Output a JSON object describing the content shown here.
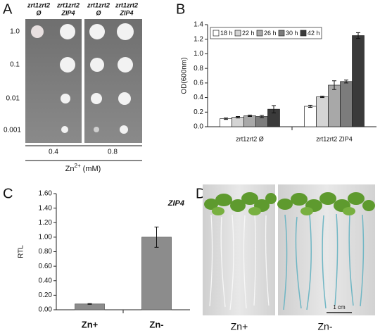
{
  "panels": {
    "A": {
      "label": "A",
      "strains": [
        {
          "name": "zrt1zrt2",
          "genotype": "Ø"
        },
        {
          "name": "zrt1zrt2",
          "genotype": "ZIP4"
        },
        {
          "name": "zrt1zrt2",
          "genotype": "Ø"
        },
        {
          "name": "zrt1zrt2",
          "genotype": "ZIP4"
        }
      ],
      "dilutions": [
        "1.0",
        "0.1",
        "0.01",
        "0.001"
      ],
      "zinc_levels": [
        "0.4",
        "0.8"
      ],
      "axis_label": {
        "base": "Zn",
        "sup": "2+",
        "rest": " (mM)"
      }
    },
    "B": {
      "label": "B"
    },
    "C": {
      "label": "C"
    },
    "D": {
      "label": "D",
      "scale_bar": "1 cm",
      "conditions": [
        "Zn+",
        "Zn-"
      ]
    }
  },
  "chart_data": [
    {
      "type": "bar",
      "ylabel": "OD(600nm)",
      "categories": [
        "zrt1zrt2 Ø",
        "zrt1zrt2 ZIP4"
      ],
      "series": [
        {
          "name": "18 h",
          "color": "#ffffff",
          "values": [
            0.11,
            0.28
          ],
          "errors": [
            0.01,
            0.015
          ]
        },
        {
          "name": "22 h",
          "color": "#d4d4d4",
          "values": [
            0.13,
            0.41
          ],
          "errors": [
            0.01,
            0.01
          ]
        },
        {
          "name": "26 h",
          "color": "#a8a8a8",
          "values": [
            0.15,
            0.57
          ],
          "errors": [
            0.01,
            0.06
          ]
        },
        {
          "name": "30 h",
          "color": "#7c7c7c",
          "values": [
            0.14,
            0.62
          ],
          "errors": [
            0.015,
            0.02
          ]
        },
        {
          "name": "42 h",
          "color": "#3a3a3a",
          "values": [
            0.24,
            1.25
          ],
          "errors": [
            0.05,
            0.04
          ]
        }
      ],
      "ylim": [
        0,
        1.4
      ],
      "yticks": [
        {
          "value": 0,
          "label": "0.0"
        },
        0.2,
        0.4,
        0.6,
        0.8,
        {
          "value": 1,
          "label": "1.0"
        },
        1.2,
        1.4
      ],
      "legend": "top-left"
    },
    {
      "type": "bar",
      "title": "ZIP4",
      "ylabel": "RTL",
      "categories": [
        "Zn+",
        "Zn-"
      ],
      "values": [
        0.08,
        1.0
      ],
      "errors": [
        0.005,
        0.14
      ],
      "color": "#8c8c8c",
      "ylim": [
        0,
        1.6
      ],
      "yticks": [
        {
          "value": 0,
          "label": "0.00"
        },
        {
          "value": 0.2,
          "label": "0.20"
        },
        {
          "value": 0.4,
          "label": "0.40"
        },
        {
          "value": 0.6,
          "label": "0.60"
        },
        {
          "value": 0.8,
          "label": "0.80"
        },
        {
          "value": 1,
          "label": "1.00"
        },
        {
          "value": 1.2,
          "label": "1.20"
        },
        {
          "value": 1.4,
          "label": "1.40"
        },
        {
          "value": 1.6,
          "label": "1.60"
        }
      ]
    }
  ]
}
